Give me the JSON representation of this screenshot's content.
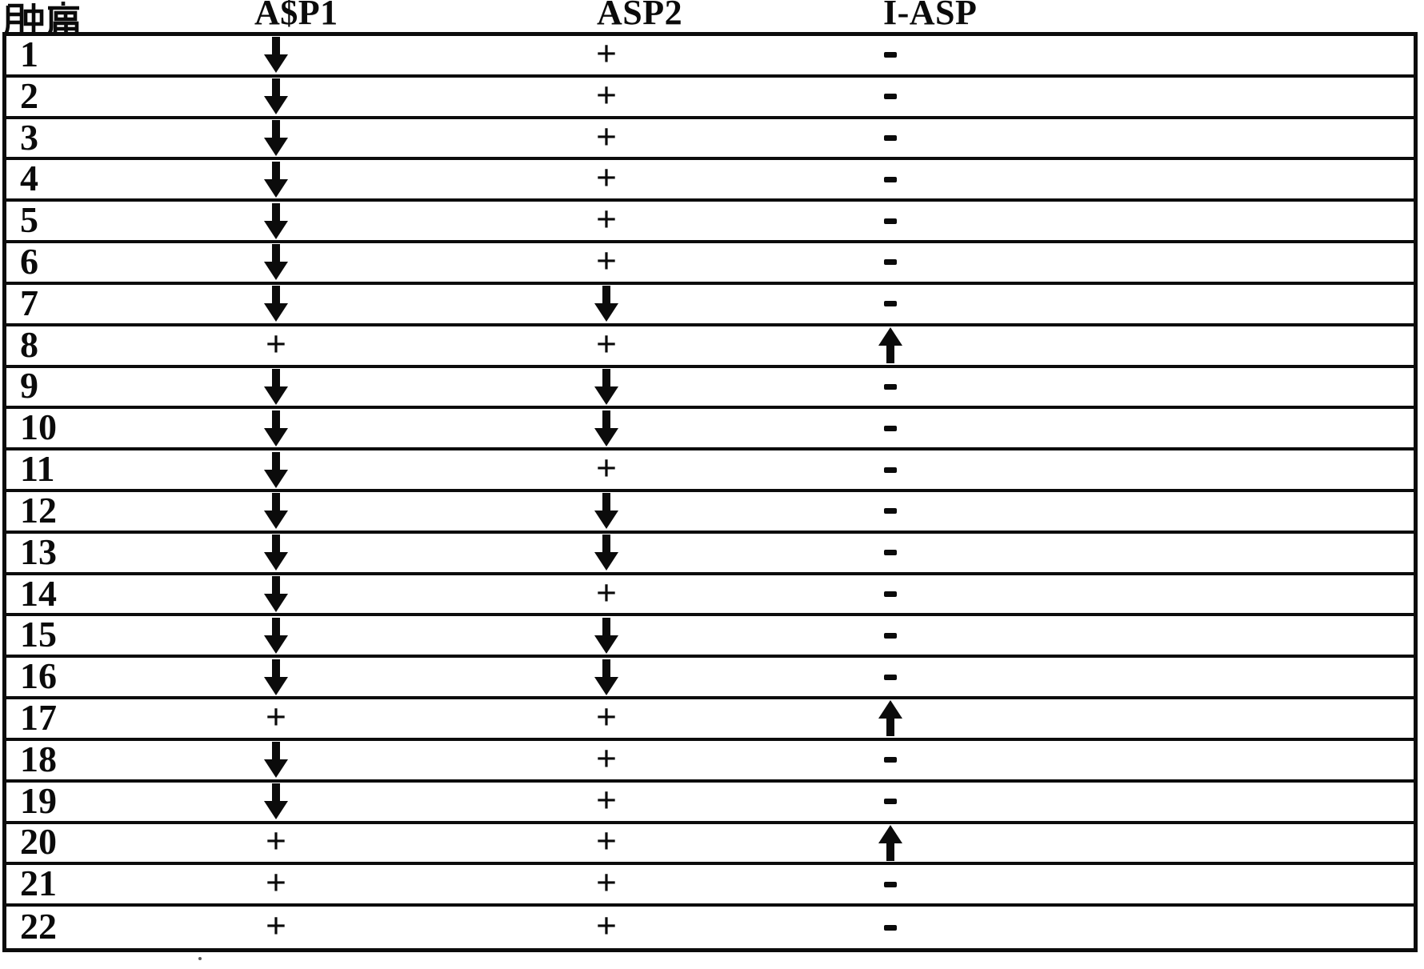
{
  "header": {
    "tumor_label": "肿瘤",
    "asp1": "A$P1",
    "asp2": "ASP2",
    "iasp": "I-ASP"
  },
  "symbols": {
    "down": "↓",
    "up": "↑",
    "plus": "+",
    "minus": "-"
  },
  "colors": {
    "ink": "#0b0b0b",
    "paper": "#ffffff"
  },
  "table": {
    "columns": [
      "肿瘤",
      "A$P1",
      "ASP2",
      "I-ASP"
    ],
    "rows": [
      {
        "tumor": "1",
        "asp1": "down",
        "asp2": "plus",
        "iasp": "minus"
      },
      {
        "tumor": "2",
        "asp1": "down",
        "asp2": "plus",
        "iasp": "minus"
      },
      {
        "tumor": "3",
        "asp1": "down",
        "asp2": "plus",
        "iasp": "minus"
      },
      {
        "tumor": "4",
        "asp1": "down",
        "asp2": "plus",
        "iasp": "minus"
      },
      {
        "tumor": "5",
        "asp1": "down",
        "asp2": "plus",
        "iasp": "minus"
      },
      {
        "tumor": "6",
        "asp1": "down",
        "asp2": "plus",
        "iasp": "minus"
      },
      {
        "tumor": "7",
        "asp1": "down",
        "asp2": "down",
        "iasp": "minus"
      },
      {
        "tumor": "8",
        "asp1": "plus",
        "asp2": "plus",
        "iasp": "up"
      },
      {
        "tumor": "9",
        "asp1": "down",
        "asp2": "down",
        "iasp": "minus"
      },
      {
        "tumor": "10",
        "asp1": "down",
        "asp2": "down",
        "iasp": "minus"
      },
      {
        "tumor": "11",
        "asp1": "down",
        "asp2": "plus",
        "iasp": "minus"
      },
      {
        "tumor": "12",
        "asp1": "down",
        "asp2": "down",
        "iasp": "minus"
      },
      {
        "tumor": "13",
        "asp1": "down",
        "asp2": "down",
        "iasp": "minus"
      },
      {
        "tumor": "14",
        "asp1": "down",
        "asp2": "plus",
        "iasp": "minus"
      },
      {
        "tumor": "15",
        "asp1": "down",
        "asp2": "down",
        "iasp": "minus"
      },
      {
        "tumor": "16",
        "asp1": "down",
        "asp2": "down",
        "iasp": "minus"
      },
      {
        "tumor": "17",
        "asp1": "plus",
        "asp2": "plus",
        "iasp": "up"
      },
      {
        "tumor": "18",
        "asp1": "down",
        "asp2": "plus",
        "iasp": "minus"
      },
      {
        "tumor": "19",
        "asp1": "down",
        "asp2": "plus",
        "iasp": "minus"
      },
      {
        "tumor": "20",
        "asp1": "plus",
        "asp2": "plus",
        "iasp": "up"
      },
      {
        "tumor": "21",
        "asp1": "plus",
        "asp2": "plus",
        "iasp": "minus"
      },
      {
        "tumor": "22",
        "asp1": "plus",
        "asp2": "plus",
        "iasp": "minus"
      }
    ]
  }
}
